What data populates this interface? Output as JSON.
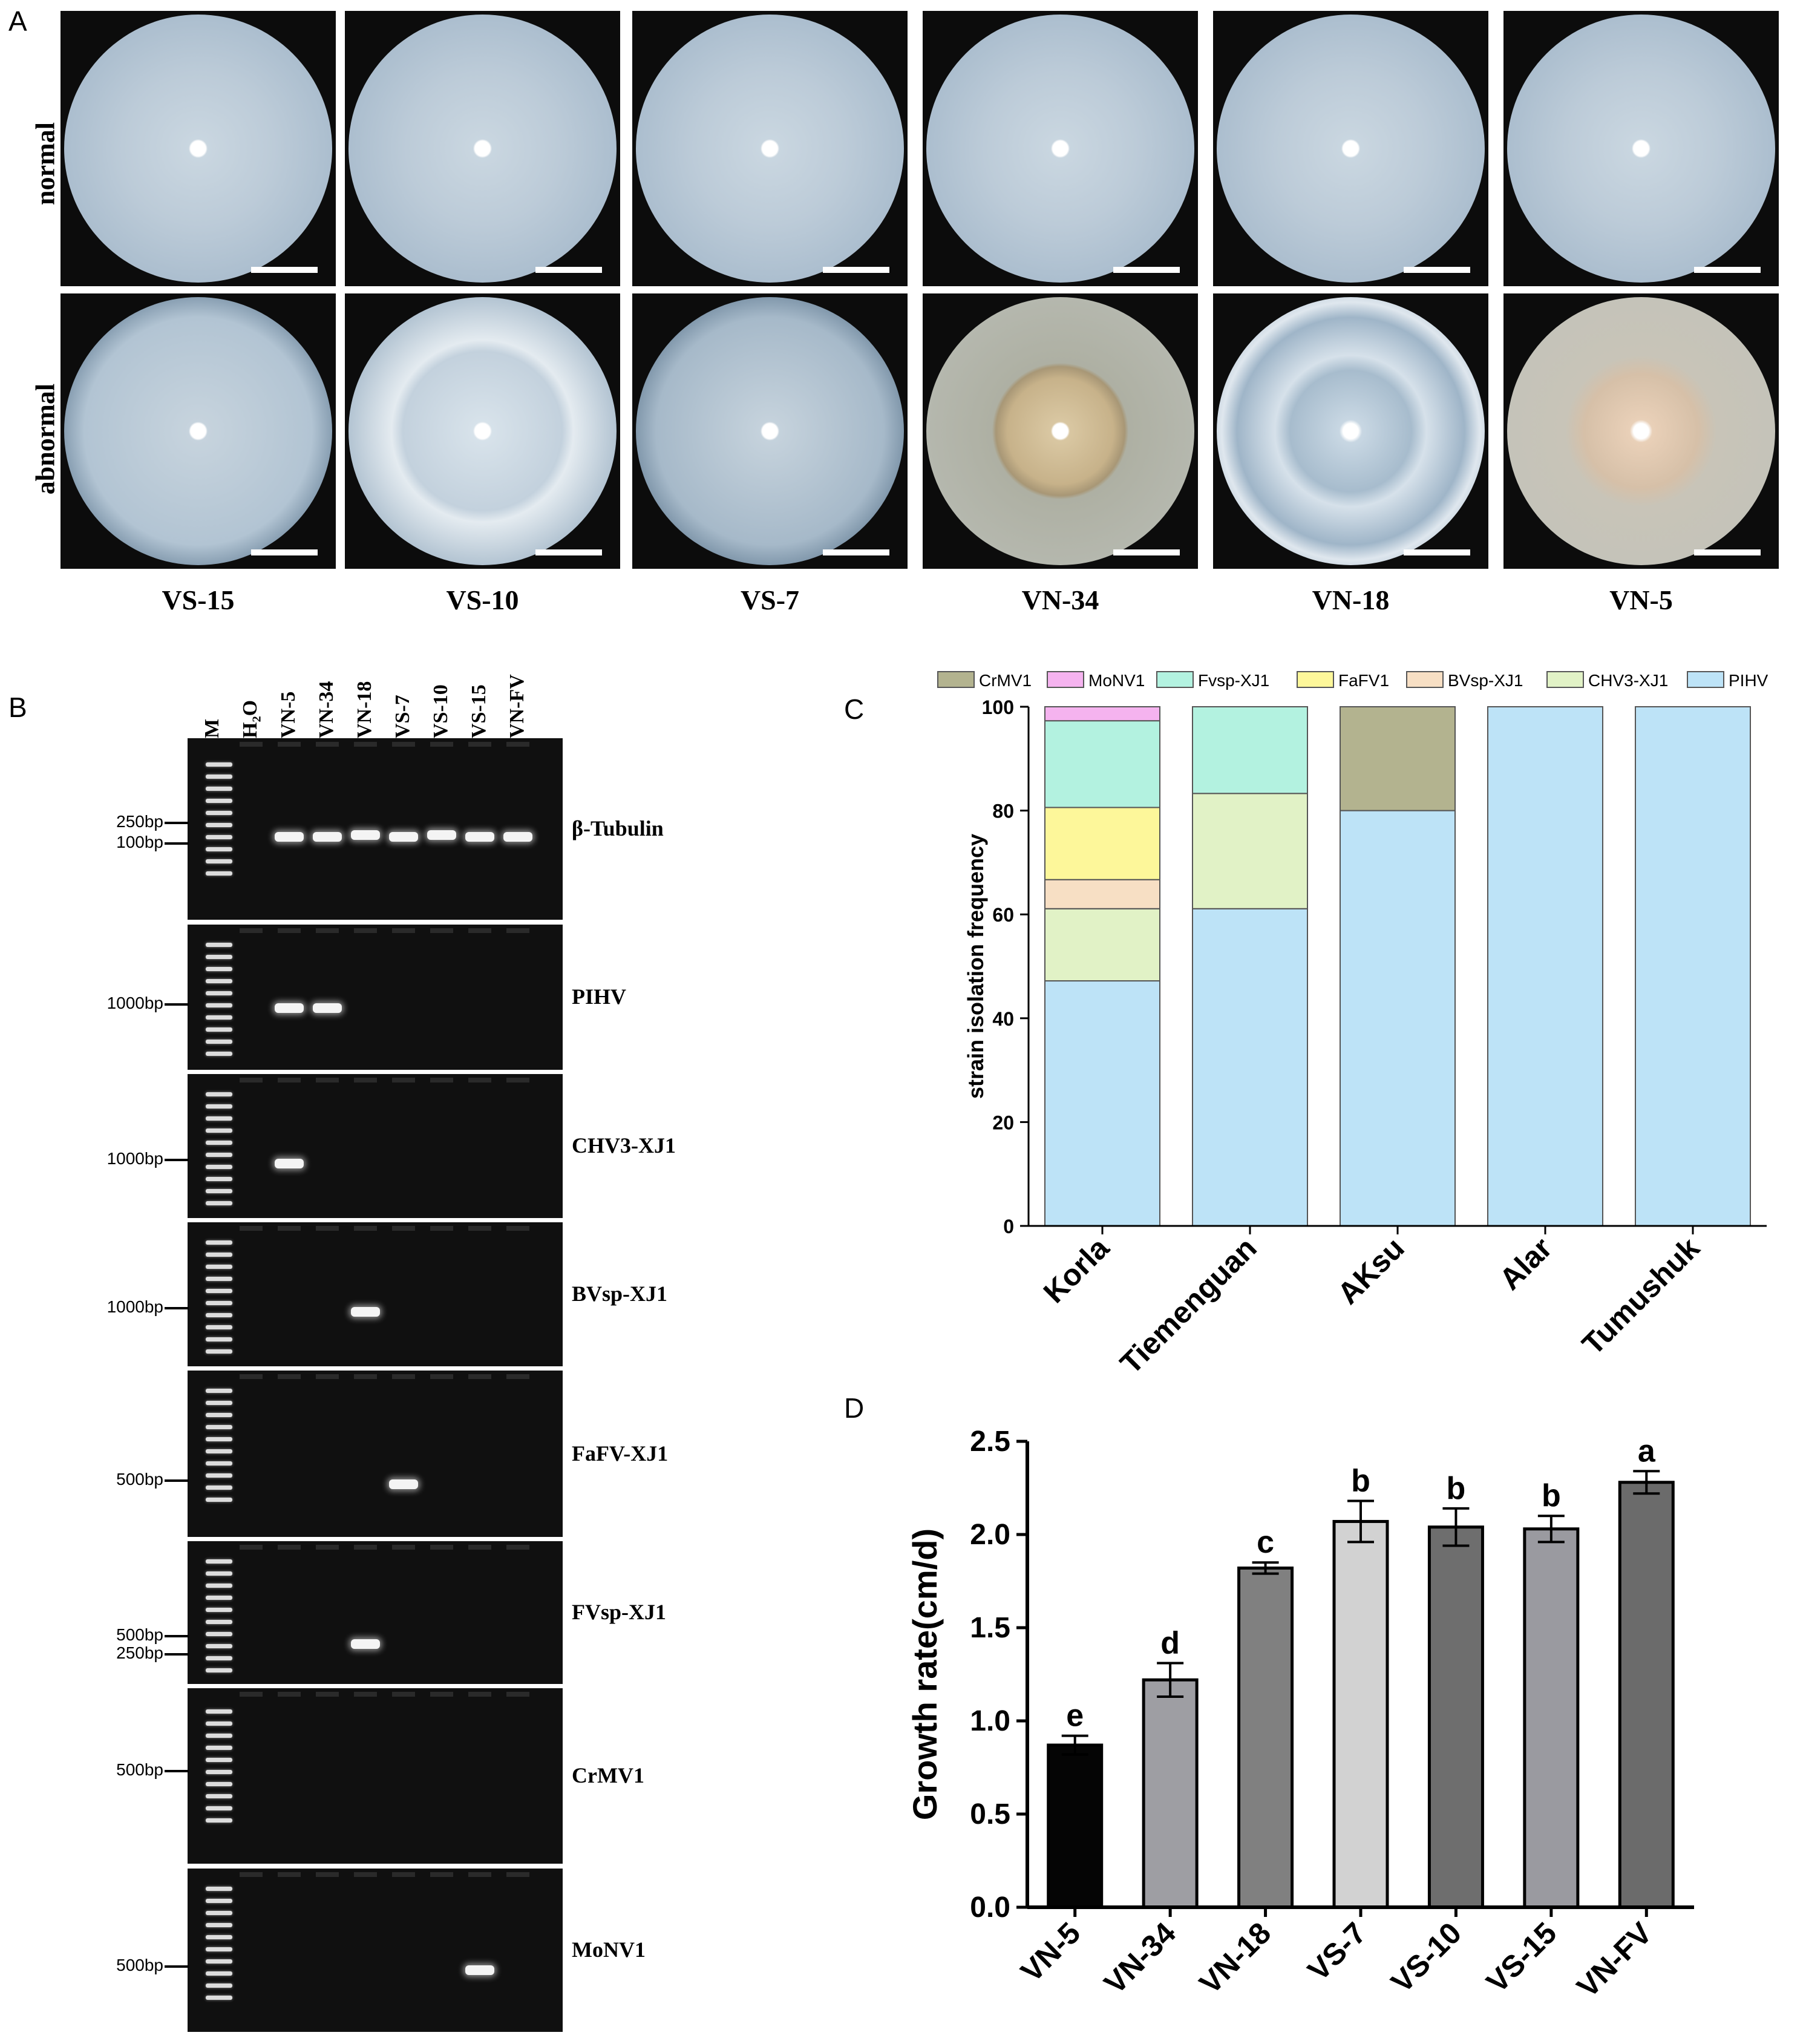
{
  "panels": {
    "A": {
      "label": "A",
      "row_labels": [
        "normal",
        "abnormal"
      ],
      "strains": [
        "VS-15",
        "VS-10",
        "VS-7",
        "VN-34",
        "VN-18",
        "VN-5"
      ]
    },
    "B": {
      "label": "B",
      "lanes": [
        "M",
        "H₂O",
        "VN-5",
        "VN-34",
        "VN-18",
        "VS-7",
        "VS-10",
        "VS-15",
        "VN-FV"
      ],
      "gels": [
        {
          "name": "β-Tubulin",
          "markers": [
            "250bp",
            "100bp"
          ]
        },
        {
          "name": "PIHV",
          "markers": [
            "1000bp"
          ]
        },
        {
          "name": "CHV3-XJ1",
          "markers": [
            "1000bp"
          ]
        },
        {
          "name": "BVsp-XJ1",
          "markers": [
            "1000bp"
          ]
        },
        {
          "name": "FaFV-XJ1",
          "markers": [
            "500bp"
          ]
        },
        {
          "name": "FVsp-XJ1",
          "markers": [
            "500bp",
            "250bp"
          ]
        },
        {
          "name": "CrMV1",
          "markers": [
            "500bp"
          ]
        },
        {
          "name": "MoNV1",
          "markers": [
            "500bp"
          ]
        }
      ]
    },
    "C": {
      "label": "C"
    },
    "D": {
      "label": "D"
    }
  },
  "chart_data": [
    {
      "panel": "C",
      "type": "bar",
      "stacked": true,
      "categories": [
        "Korla",
        "Tiemenguan",
        "AKsu",
        "Alar",
        "Tumushuk"
      ],
      "ylabel": "strain isolation frequency",
      "xlabel": "",
      "ylim": [
        0,
        100
      ],
      "yticks": [
        0,
        20,
        40,
        60,
        80,
        100
      ],
      "legend_position": "top",
      "legend_order": [
        "CrMV1",
        "MoNV1",
        "Fvsp-XJ1",
        "FaFV1",
        "BVsp-XJ1",
        "CHV3-XJ1",
        "PIHV"
      ],
      "series": [
        {
          "name": "PIHV",
          "color": "#bde3f7",
          "values": [
            47.2,
            61.1,
            80.0,
            100,
            100
          ]
        },
        {
          "name": "CHV3-XJ1",
          "color": "#e1f2c6",
          "values": [
            13.9,
            22.2,
            0,
            0,
            0
          ]
        },
        {
          "name": "BVsp-XJ1",
          "color": "#f7dfc4",
          "values": [
            5.6,
            0,
            0,
            0,
            0
          ]
        },
        {
          "name": "FaFV1",
          "color": "#fdf79a",
          "values": [
            13.9,
            0,
            0,
            0,
            0
          ]
        },
        {
          "name": "Fvsp-XJ1",
          "color": "#b3f2e0",
          "values": [
            16.7,
            16.7,
            0,
            0,
            0
          ]
        },
        {
          "name": "MoNV1",
          "color": "#f5b3ef",
          "values": [
            2.7,
            0,
            0,
            0,
            0
          ]
        },
        {
          "name": "CrMV1",
          "color": "#b3b38f",
          "values": [
            0,
            0,
            20.0,
            0,
            0
          ]
        }
      ]
    },
    {
      "panel": "D",
      "type": "bar",
      "categories": [
        "VN-5",
        "VN-34",
        "VN-18",
        "VS-7",
        "VS-10",
        "VS-15",
        "VN-FV"
      ],
      "values": [
        0.87,
        1.22,
        1.82,
        2.07,
        2.04,
        2.03,
        2.28
      ],
      "errors": [
        0.05,
        0.09,
        0.03,
        0.11,
        0.1,
        0.07,
        0.06
      ],
      "significance": [
        "e",
        "d",
        "c",
        "b",
        "b",
        "b",
        "a"
      ],
      "bar_colors": [
        "#050505",
        "#9e9ea3",
        "#808080",
        "#d2d2d2",
        "#6e6e6e",
        "#9a9aa0",
        "#6b6b6b"
      ],
      "ylabel": "Growth rate(cm/d)",
      "xlabel": "",
      "ylim": [
        0,
        2.5
      ],
      "yticks": [
        "0.0",
        "0.5",
        "1.0",
        "1.5",
        "2.0",
        "2.5"
      ]
    }
  ]
}
